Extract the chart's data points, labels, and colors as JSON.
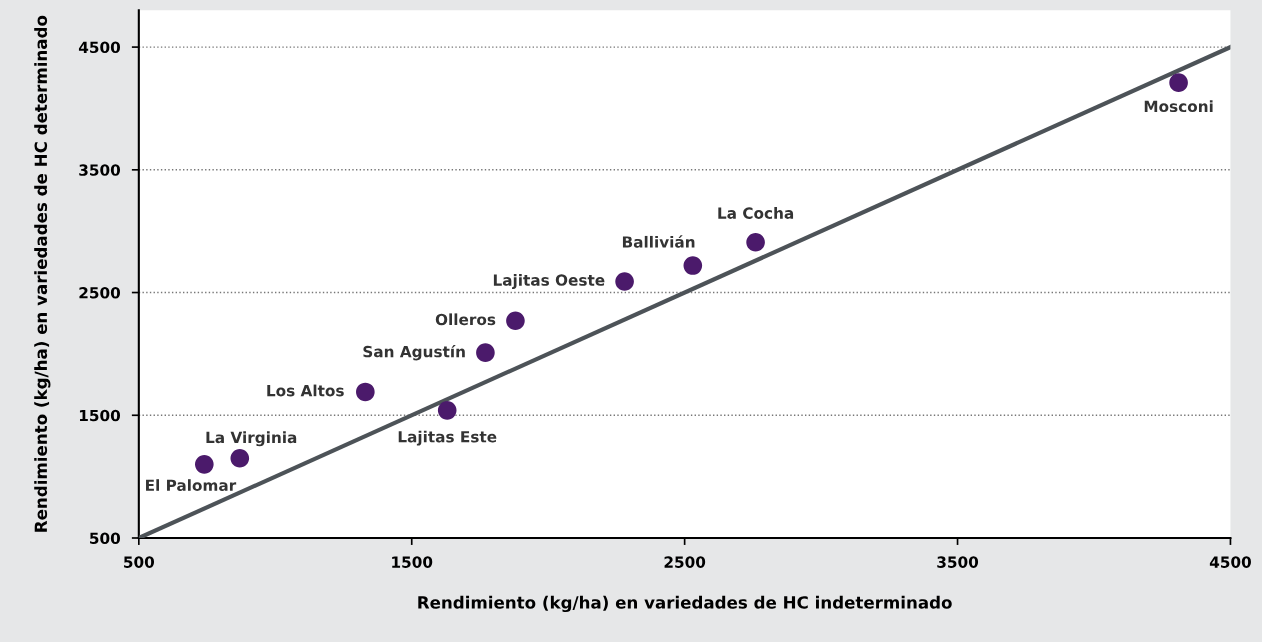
{
  "chart_data": [
    {
      "type": "scatter",
      "xlabel": "Rendimiento (kg/ha) en variedades de HC indeterminado",
      "ylabel": "Rendimiento (kg/ha) en variedades de HC determinado",
      "xlim": [
        500,
        4500
      ],
      "ylim": [
        500,
        4800
      ],
      "xticks": [
        500,
        1500,
        2500,
        3500,
        4500
      ],
      "yticks": [
        500,
        1500,
        2500,
        3500,
        4500
      ],
      "grid": "y",
      "series": [
        {
          "color": "#4b1a6b",
          "marker": "circle",
          "x": [
            740,
            870,
            1330,
            1630,
            1770,
            1880,
            2280,
            2530,
            2760,
            4310
          ],
          "values": [
            1100,
            1150,
            1690,
            1540,
            2010,
            2270,
            2590,
            2720,
            2910,
            4210
          ]
        },
        {
          "type": "line",
          "color": "#4d5358",
          "x": [
            500,
            4500
          ],
          "values": [
            500,
            4500
          ],
          "marker": "none"
        }
      ],
      "annotations": [
        {
          "text": "El Palomar",
          "x": 740,
          "y": 1100
        },
        {
          "text": "La Virginia",
          "x": 870,
          "y": 1150
        },
        {
          "text": "Los Altos",
          "x": 1330,
          "y": 1690
        },
        {
          "text": "Lajitas Este",
          "x": 1630,
          "y": 1540
        },
        {
          "text": "San Agustín",
          "x": 1770,
          "y": 2010
        },
        {
          "text": "Olleros",
          "x": 1880,
          "y": 2270
        },
        {
          "text": "Lajitas Oeste",
          "x": 2280,
          "y": 2590
        },
        {
          "text": "Ballivián",
          "x": 2530,
          "y": 2720
        },
        {
          "text": "La Cocha",
          "x": 2760,
          "y": 2910
        },
        {
          "text": "Mosconi",
          "x": 4310,
          "y": 4210
        }
      ]
    }
  ]
}
